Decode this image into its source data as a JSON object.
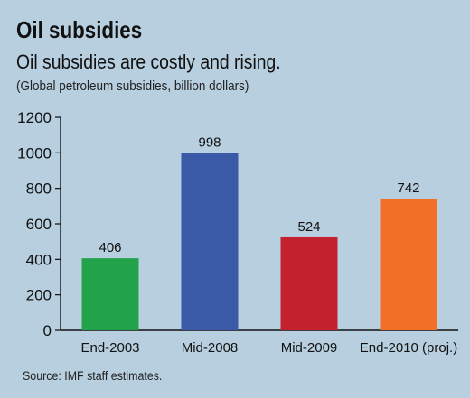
{
  "chart_data": {
    "type": "bar",
    "title": "Oil subsidies",
    "subtitle": "Oil subsidies are costly and rising.",
    "unit_note": "(Global petroleum subsidies, billion dollars)",
    "categories": [
      "End-2003",
      "Mid-2008",
      "Mid-2009",
      "End-2010 (proj.)"
    ],
    "values": [
      406,
      998,
      524,
      742
    ],
    "data_labels": [
      "406",
      "998",
      "524",
      "742"
    ],
    "colors": [
      "#22a24a",
      "#3a5aa8",
      "#c4212f",
      "#f26f28"
    ],
    "ylim": [
      0,
      1200
    ],
    "yticks": [
      0,
      200,
      400,
      600,
      800,
      1000,
      1200
    ],
    "xlabel": "",
    "ylabel": "",
    "grid": false,
    "source": "Source: IMF staff estimates."
  },
  "colors": {
    "background": "#b7cfdf",
    "axis": "#111111"
  }
}
